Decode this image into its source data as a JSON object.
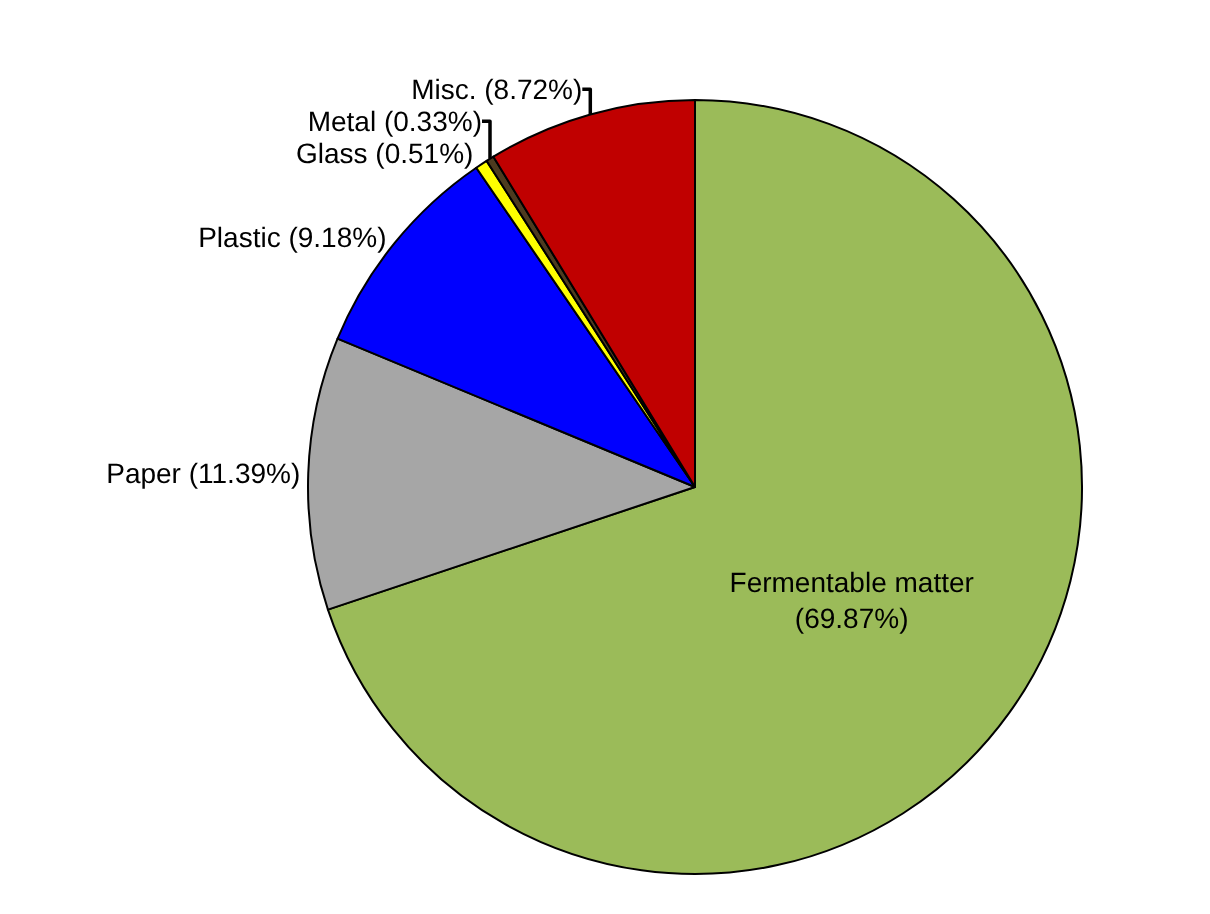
{
  "chart_data": {
    "type": "pie",
    "categories": [
      "Fermentable matter",
      "Paper",
      "Plastic",
      "Glass",
      "Metal",
      "Misc."
    ],
    "values": [
      69.87,
      11.39,
      9.18,
      0.51,
      0.33,
      8.72
    ],
    "value_labels": [
      "(69.87%)",
      "(11.39%)",
      "(9.18%)",
      "(0.51%)",
      "(0.33%)",
      "(8.72%)"
    ],
    "colors": [
      "#9bbb59",
      "#a6a6a6",
      "#0000ff",
      "#ffff00",
      "#4d3b1f",
      "#c00000"
    ],
    "legend": false
  }
}
